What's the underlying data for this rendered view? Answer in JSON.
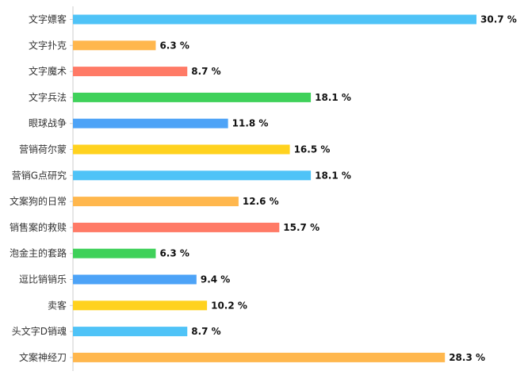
{
  "chart_data": {
    "type": "bar",
    "orientation": "horizontal",
    "categories": [
      "文字嫖客",
      "文字扑克",
      "文字魔术",
      "文字兵法",
      "眼球战争",
      "营销荷尔蒙",
      "营销G点研究",
      "文案狗的日常",
      "销售案的救赎",
      "泡金主的套路",
      "逗比销销乐",
      "卖客",
      "头文字D销魂",
      "文案神经刀"
    ],
    "values": [
      30.7,
      6.3,
      8.7,
      18.1,
      11.8,
      16.5,
      18.1,
      12.6,
      15.7,
      6.3,
      9.4,
      10.2,
      8.7,
      28.3
    ],
    "value_labels": [
      "30.7 %",
      "6.3 %",
      "8.7 %",
      "18.1 %",
      "11.8 %",
      "16.5 %",
      "18.1 %",
      "12.6 %",
      "15.7 %",
      "6.3 %",
      "9.4 %",
      "10.2 %",
      "8.7 %",
      "28.3 %"
    ],
    "colors": [
      "#4fc3f7",
      "#ffb74d",
      "#ff7a66",
      "#3fd15a",
      "#4da3f7",
      "#ffd21f",
      "#4fc3f7",
      "#ffb74d",
      "#ff7a66",
      "#3fd15a",
      "#4da3f7",
      "#ffd21f",
      "#4fc3f7",
      "#ffb74d"
    ],
    "title": "",
    "xlabel": "",
    "ylabel": "",
    "xlim": [
      0,
      32
    ],
    "grid": false,
    "legend": "none"
  }
}
